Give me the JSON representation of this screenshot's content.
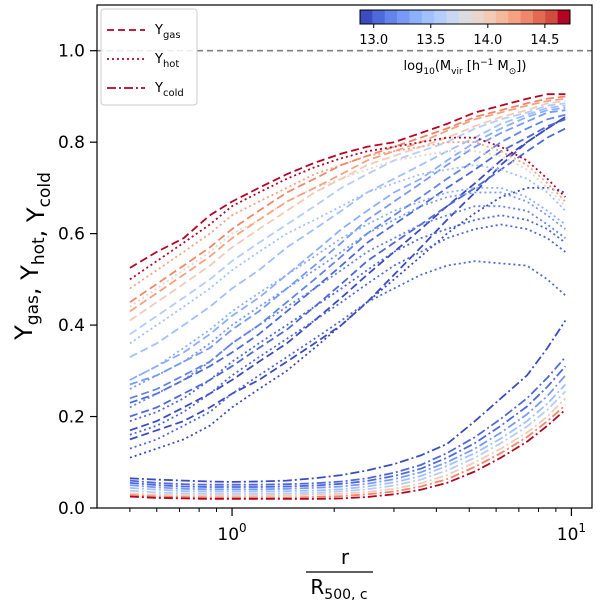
{
  "chart_data": {
    "type": "line",
    "x_scale": "log",
    "xlim": [
      0.4,
      11.5
    ],
    "ylim": [
      0.0,
      1.1
    ],
    "xlabel": {
      "numerator": "r",
      "denominator_main": "R",
      "denominator_sub": "500, c"
    },
    "ylabel": {
      "parts": [
        [
          "Y",
          "gas"
        ],
        [
          "Y",
          "hot"
        ],
        [
          "Y",
          "cold"
        ]
      ],
      "separator": ", "
    },
    "x_ticks": [
      {
        "value": 1,
        "base": "10",
        "exp": "0"
      },
      {
        "value": 10,
        "base": "10",
        "exp": "1"
      }
    ],
    "y_ticks": [
      {
        "value": 0.0,
        "label": "0.0"
      },
      {
        "value": 0.2,
        "label": "0.2"
      },
      {
        "value": 0.4,
        "label": "0.4"
      },
      {
        "value": 0.6,
        "label": "0.6"
      },
      {
        "value": 0.8,
        "label": "0.8"
      },
      {
        "value": 1.0,
        "label": "1.0"
      }
    ],
    "reference_line": {
      "y": 1.0,
      "style": "dashed",
      "color": "#808080"
    },
    "legend": {
      "placement": "top-left",
      "entries": [
        {
          "main": "Y",
          "sub": "gas",
          "style": "dashed",
          "color": "#b40426"
        },
        {
          "main": "Y",
          "sub": "hot",
          "style": "dotted",
          "color": "#b40426"
        },
        {
          "main": "Y",
          "sub": "cold",
          "style": "dashdot",
          "color": "#b40426"
        }
      ]
    },
    "colorbar": {
      "placement": "top-right",
      "colormap": "coolwarm",
      "range": [
        12.88,
        14.72
      ],
      "ticks": [
        {
          "value": 13.0,
          "label": "13.0"
        },
        {
          "value": 13.5,
          "label": "13.5"
        },
        {
          "value": 14.0,
          "label": "14.0"
        },
        {
          "value": 14.5,
          "label": "14.5"
        }
      ],
      "label": {
        "pre": "log",
        "pre_sub": "10",
        "open": "(M",
        "m_sub": "vir",
        "mid": " [h",
        "h_sup": "−1",
        "after": " M",
        "sun_sub": "⊙",
        "close": "])"
      },
      "colors": [
        "#3b4cc0",
        "#4f69d9",
        "#6384eb",
        "#779af7",
        "#8caffe",
        "#a1c0ff",
        "#b5cdfa",
        "#c9d7f0",
        "#dadce0",
        "#e8d6cc",
        "#f2cbb7",
        "#f6b89c",
        "#f5a282",
        "#ef886b",
        "#e26952",
        "#d24b40",
        "#b40426"
      ]
    },
    "x": [
      0.5,
      0.6,
      0.72,
      0.86,
      1.0,
      1.2,
      1.45,
      1.75,
      2.1,
      2.5,
      3.0,
      3.6,
      4.3,
      5.2,
      6.2,
      7.4,
      8.5,
      9.6
    ],
    "series": [
      {
        "kind": "gas",
        "mass": 14.7,
        "values": [
          0.525,
          0.56,
          0.59,
          0.64,
          0.67,
          0.7,
          0.73,
          0.755,
          0.775,
          0.79,
          0.8,
          0.82,
          0.84,
          0.865,
          0.88,
          0.895,
          0.905,
          0.905
        ]
      },
      {
        "kind": "gas",
        "mass": 14.4,
        "values": [
          0.45,
          0.49,
          0.53,
          0.57,
          0.61,
          0.65,
          0.69,
          0.72,
          0.75,
          0.77,
          0.79,
          0.81,
          0.83,
          0.855,
          0.87,
          0.885,
          0.895,
          0.9
        ]
      },
      {
        "kind": "gas",
        "mass": 14.3,
        "values": [
          0.43,
          0.47,
          0.51,
          0.55,
          0.59,
          0.63,
          0.67,
          0.7,
          0.73,
          0.76,
          0.78,
          0.8,
          0.825,
          0.85,
          0.865,
          0.88,
          0.89,
          0.895
        ]
      },
      {
        "kind": "gas",
        "mass": 14.0,
        "values": [
          0.41,
          0.45,
          0.49,
          0.53,
          0.57,
          0.61,
          0.65,
          0.69,
          0.72,
          0.75,
          0.77,
          0.79,
          0.81,
          0.835,
          0.855,
          0.87,
          0.885,
          0.89
        ]
      },
      {
        "kind": "gas",
        "mass": 13.6,
        "values": [
          0.38,
          0.42,
          0.46,
          0.5,
          0.54,
          0.58,
          0.62,
          0.66,
          0.7,
          0.73,
          0.76,
          0.78,
          0.8,
          0.83,
          0.85,
          0.865,
          0.88,
          0.885
        ]
      },
      {
        "kind": "gas",
        "mass": 13.4,
        "values": [
          0.33,
          0.36,
          0.4,
          0.44,
          0.48,
          0.52,
          0.57,
          0.61,
          0.65,
          0.69,
          0.72,
          0.75,
          0.78,
          0.81,
          0.84,
          0.86,
          0.875,
          0.88
        ]
      },
      {
        "kind": "gas",
        "mass": 13.3,
        "values": [
          0.28,
          0.31,
          0.34,
          0.38,
          0.42,
          0.46,
          0.51,
          0.56,
          0.61,
          0.65,
          0.69,
          0.72,
          0.76,
          0.8,
          0.83,
          0.855,
          0.87,
          0.875
        ]
      },
      {
        "kind": "gas",
        "mass": 13.2,
        "values": [
          0.27,
          0.29,
          0.32,
          0.35,
          0.39,
          0.43,
          0.48,
          0.53,
          0.58,
          0.63,
          0.67,
          0.71,
          0.75,
          0.79,
          0.82,
          0.845,
          0.865,
          0.87
        ]
      },
      {
        "kind": "gas",
        "mass": 13.1,
        "values": [
          0.24,
          0.26,
          0.29,
          0.32,
          0.36,
          0.4,
          0.45,
          0.5,
          0.55,
          0.6,
          0.64,
          0.68,
          0.72,
          0.76,
          0.8,
          0.83,
          0.85,
          0.86
        ]
      },
      {
        "kind": "gas",
        "mass": 13.0,
        "values": [
          0.23,
          0.25,
          0.28,
          0.31,
          0.34,
          0.38,
          0.43,
          0.48,
          0.53,
          0.58,
          0.62,
          0.66,
          0.7,
          0.74,
          0.78,
          0.81,
          0.835,
          0.85
        ]
      },
      {
        "kind": "gas",
        "mass": 12.95,
        "values": [
          0.2,
          0.22,
          0.25,
          0.28,
          0.31,
          0.35,
          0.39,
          0.44,
          0.49,
          0.54,
          0.58,
          0.62,
          0.66,
          0.7,
          0.74,
          0.78,
          0.81,
          0.83
        ]
      },
      {
        "kind": "gas",
        "mass": 12.9,
        "values": [
          0.17,
          0.19,
          0.22,
          0.25,
          0.28,
          0.32,
          0.36,
          0.41,
          0.46,
          0.51,
          0.56,
          0.61,
          0.66,
          0.71,
          0.76,
          0.8,
          0.83,
          0.855
        ]
      },
      {
        "kind": "gas",
        "mass": 12.9,
        "values": [
          0.15,
          0.17,
          0.19,
          0.22,
          0.25,
          0.28,
          0.32,
          0.36,
          0.4,
          0.45,
          0.51,
          0.57,
          0.63,
          0.69,
          0.75,
          0.8,
          0.83,
          0.855
        ]
      },
      {
        "kind": "hot",
        "mass": 14.7,
        "values": [
          0.5,
          0.54,
          0.58,
          0.62,
          0.66,
          0.69,
          0.72,
          0.745,
          0.765,
          0.78,
          0.79,
          0.8,
          0.81,
          0.81,
          0.79,
          0.76,
          0.72,
          0.68
        ]
      },
      {
        "kind": "hot",
        "mass": 14.3,
        "values": [
          0.48,
          0.52,
          0.56,
          0.6,
          0.64,
          0.67,
          0.7,
          0.73,
          0.75,
          0.77,
          0.78,
          0.79,
          0.8,
          0.8,
          0.78,
          0.75,
          0.71,
          0.67
        ]
      },
      {
        "kind": "hot",
        "mass": 13.9,
        "values": [
          0.44,
          0.48,
          0.52,
          0.56,
          0.6,
          0.63,
          0.67,
          0.7,
          0.72,
          0.74,
          0.76,
          0.77,
          0.78,
          0.78,
          0.77,
          0.74,
          0.7,
          0.66
        ]
      },
      {
        "kind": "hot",
        "mass": 13.5,
        "values": [
          0.36,
          0.4,
          0.44,
          0.48,
          0.52,
          0.56,
          0.6,
          0.63,
          0.66,
          0.69,
          0.71,
          0.73,
          0.74,
          0.75,
          0.74,
          0.72,
          0.69,
          0.65
        ]
      },
      {
        "kind": "hot",
        "mass": 13.3,
        "values": [
          0.28,
          0.31,
          0.35,
          0.39,
          0.43,
          0.47,
          0.51,
          0.55,
          0.59,
          0.62,
          0.65,
          0.67,
          0.69,
          0.7,
          0.7,
          0.68,
          0.65,
          0.62
        ]
      },
      {
        "kind": "hot",
        "mass": 13.2,
        "values": [
          0.26,
          0.29,
          0.32,
          0.36,
          0.4,
          0.44,
          0.48,
          0.52,
          0.56,
          0.6,
          0.63,
          0.66,
          0.68,
          0.69,
          0.69,
          0.67,
          0.64,
          0.61
        ]
      },
      {
        "kind": "hot",
        "mass": 13.1,
        "values": [
          0.22,
          0.25,
          0.28,
          0.32,
          0.36,
          0.4,
          0.44,
          0.48,
          0.52,
          0.56,
          0.59,
          0.62,
          0.64,
          0.66,
          0.66,
          0.65,
          0.62,
          0.59
        ]
      },
      {
        "kind": "hot",
        "mass": 13.05,
        "values": [
          0.19,
          0.21,
          0.24,
          0.28,
          0.32,
          0.36,
          0.4,
          0.44,
          0.48,
          0.52,
          0.56,
          0.59,
          0.61,
          0.63,
          0.64,
          0.63,
          0.61,
          0.58
        ]
      },
      {
        "kind": "hot",
        "mass": 13.0,
        "values": [
          0.16,
          0.18,
          0.21,
          0.25,
          0.29,
          0.33,
          0.37,
          0.41,
          0.45,
          0.49,
          0.53,
          0.56,
          0.59,
          0.61,
          0.62,
          0.61,
          0.59,
          0.56
        ]
      },
      {
        "kind": "hot",
        "mass": 12.95,
        "values": [
          0.13,
          0.15,
          0.18,
          0.21,
          0.25,
          0.29,
          0.33,
          0.37,
          0.41,
          0.45,
          0.48,
          0.51,
          0.53,
          0.54,
          0.535,
          0.53,
          0.5,
          0.465
        ]
      },
      {
        "kind": "hot",
        "mass": 12.9,
        "values": [
          0.11,
          0.13,
          0.15,
          0.18,
          0.22,
          0.26,
          0.3,
          0.35,
          0.4,
          0.45,
          0.5,
          0.55,
          0.6,
          0.645,
          0.68,
          0.7,
          0.7,
          0.69
        ]
      },
      {
        "kind": "cold",
        "mass": 14.7,
        "values": [
          0.025,
          0.022,
          0.021,
          0.02,
          0.02,
          0.02,
          0.02,
          0.02,
          0.021,
          0.024,
          0.03,
          0.04,
          0.055,
          0.08,
          0.11,
          0.145,
          0.18,
          0.215
        ]
      },
      {
        "kind": "cold",
        "mass": 14.4,
        "values": [
          0.028,
          0.025,
          0.024,
          0.023,
          0.023,
          0.023,
          0.023,
          0.024,
          0.026,
          0.03,
          0.036,
          0.047,
          0.063,
          0.09,
          0.12,
          0.155,
          0.19,
          0.225
        ]
      },
      {
        "kind": "cold",
        "mass": 14.0,
        "values": [
          0.032,
          0.029,
          0.028,
          0.027,
          0.027,
          0.027,
          0.028,
          0.029,
          0.031,
          0.035,
          0.042,
          0.054,
          0.072,
          0.1,
          0.13,
          0.165,
          0.2,
          0.24
        ]
      },
      {
        "kind": "cold",
        "mass": 13.6,
        "values": [
          0.038,
          0.034,
          0.032,
          0.031,
          0.031,
          0.031,
          0.032,
          0.033,
          0.036,
          0.041,
          0.049,
          0.062,
          0.082,
          0.11,
          0.142,
          0.178,
          0.215,
          0.255
        ]
      },
      {
        "kind": "cold",
        "mass": 13.4,
        "values": [
          0.044,
          0.04,
          0.037,
          0.036,
          0.036,
          0.036,
          0.037,
          0.038,
          0.041,
          0.047,
          0.056,
          0.07,
          0.092,
          0.12,
          0.152,
          0.19,
          0.228,
          0.27
        ]
      },
      {
        "kind": "cold",
        "mass": 13.2,
        "values": [
          0.05,
          0.045,
          0.042,
          0.041,
          0.041,
          0.041,
          0.042,
          0.044,
          0.047,
          0.053,
          0.063,
          0.078,
          0.1,
          0.13,
          0.165,
          0.205,
          0.245,
          0.29
        ]
      },
      {
        "kind": "cold",
        "mass": 13.05,
        "values": [
          0.055,
          0.05,
          0.047,
          0.046,
          0.046,
          0.046,
          0.047,
          0.049,
          0.053,
          0.059,
          0.07,
          0.086,
          0.11,
          0.142,
          0.18,
          0.222,
          0.265,
          0.31
        ]
      },
      {
        "kind": "cold",
        "mass": 12.95,
        "values": [
          0.06,
          0.055,
          0.052,
          0.051,
          0.051,
          0.051,
          0.052,
          0.054,
          0.058,
          0.065,
          0.077,
          0.094,
          0.12,
          0.155,
          0.195,
          0.24,
          0.285,
          0.33
        ]
      },
      {
        "kind": "cold",
        "mass": 12.9,
        "values": [
          0.065,
          0.062,
          0.06,
          0.058,
          0.057,
          0.058,
          0.06,
          0.065,
          0.072,
          0.082,
          0.096,
          0.115,
          0.14,
          0.19,
          0.24,
          0.29,
          0.35,
          0.41
        ]
      }
    ]
  }
}
